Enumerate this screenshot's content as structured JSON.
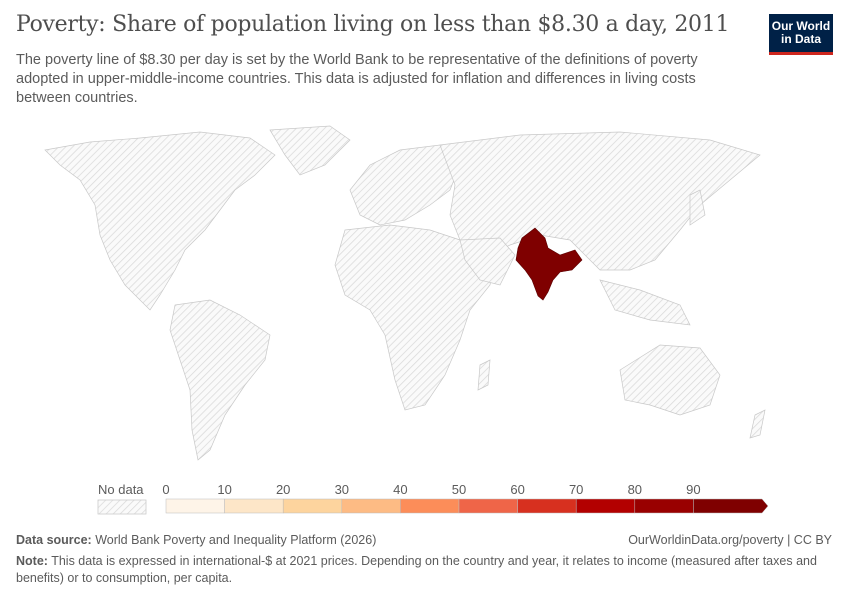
{
  "header": {
    "title": "Poverty: Share of population living on less than $8.30 a day, 2011",
    "subtitle": "The poverty line of $8.30 per day is set by the World Bank to be representative of the definitions of poverty adopted in upper-middle-income countries. This data is adjusted for inflation and differences in living costs between countries.",
    "logo": [
      "Our World",
      "in Data"
    ]
  },
  "map": {
    "highlighted_country": "India",
    "highlighted_color": "#7f0000",
    "no_data_color": "#e6e6e6"
  },
  "legend": {
    "no_data_label": "No data",
    "ticks": [
      "0",
      "10",
      "20",
      "30",
      "40",
      "50",
      "60",
      "70",
      "80",
      "90"
    ],
    "colors": [
      "#fef4e8",
      "#fde6c8",
      "#fdd49e",
      "#fdbb84",
      "#fc8d59",
      "#ef6548",
      "#d7301f",
      "#b30000",
      "#990000",
      "#7f0000"
    ]
  },
  "footer": {
    "source_label": "Data source:",
    "source_text": "World Bank Poverty and Inequality Platform (2026)",
    "url": "OurWorldinData.org/poverty | CC BY",
    "note_label": "Note:",
    "note_text": "This data is expressed in international-$ at 2021 prices. Depending on the country and year, it relates to income (measured after taxes and benefits) or to consumption, per capita."
  }
}
